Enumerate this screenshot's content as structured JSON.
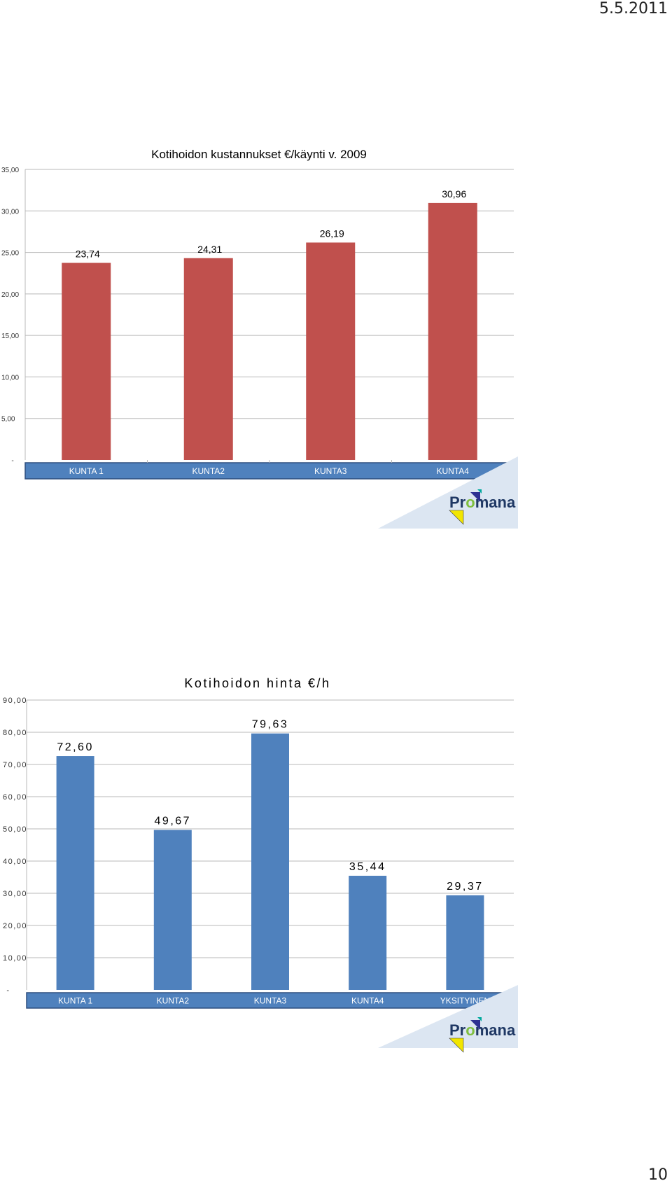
{
  "page": {
    "date": "5.5.2011",
    "number": "10"
  },
  "logo": {
    "text_pr": "Pr",
    "text_o": "o",
    "text_mana": "mana"
  },
  "chart_data": [
    {
      "type": "bar",
      "title": "Kotihoidon kustannukset €/käynti v. 2009",
      "categories": [
        "KUNTA 1",
        "KUNTA2",
        "KUNTA3",
        "KUNTA4"
      ],
      "values": [
        23.74,
        24.31,
        26.19,
        30.96
      ],
      "value_labels": [
        "23,74",
        "24,31",
        "26,19",
        "30,96"
      ],
      "ylim": [
        0,
        35
      ],
      "yticks": [
        0,
        5,
        10,
        15,
        20,
        25,
        30,
        35
      ],
      "ytick_labels": [
        "-",
        "5,00",
        "10,00",
        "15,00",
        "20,00",
        "25,00",
        "30,00",
        "35,00"
      ],
      "bar_color": "#c0504d",
      "band_color": "#4f81bd",
      "grid": true,
      "legend": "none"
    },
    {
      "type": "bar",
      "title": "Kotihoidon hinta €/h",
      "categories": [
        "KUNTA 1",
        "KUNTA2",
        "KUNTA3",
        "KUNTA4",
        "YKSITYINEN"
      ],
      "values": [
        72.6,
        49.67,
        79.63,
        35.44,
        29.37
      ],
      "value_labels": [
        "72,60",
        "49,67",
        "79,63",
        "35,44",
        "29,37"
      ],
      "ylim": [
        0,
        90
      ],
      "yticks": [
        0,
        10,
        20,
        30,
        40,
        50,
        60,
        70,
        80,
        90
      ],
      "ytick_labels": [
        "-",
        "10,00",
        "20,00",
        "30,00",
        "40,00",
        "50,00",
        "60,00",
        "70,00",
        "80,00",
        "90,00"
      ],
      "bar_color": "#4f81bd",
      "band_color": "#4f81bd",
      "grid": true,
      "legend": "none"
    }
  ]
}
